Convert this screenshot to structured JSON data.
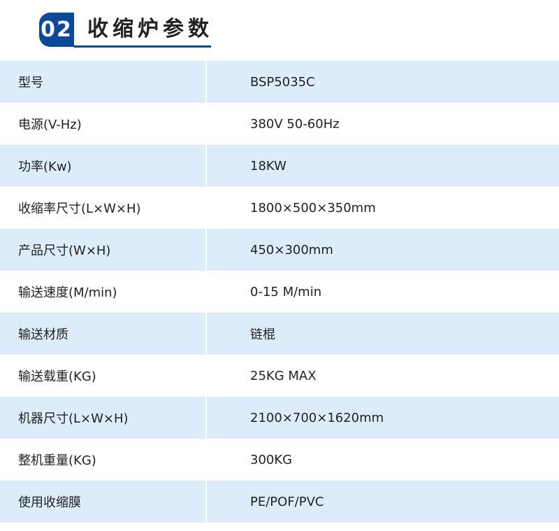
{
  "header": {
    "number": "02",
    "title": "收缩炉参数"
  },
  "rows": [
    {
      "label": "型号",
      "value": "BSP5035C"
    },
    {
      "label": "电源(V-Hz)",
      "value": "380V  50-60Hz"
    },
    {
      "label": "功率(Kw)",
      "value": "18KW"
    },
    {
      "label": "收缩率尺寸(L×W×H)",
      "value": "1800×500×350mm"
    },
    {
      "label": "产品尺寸(W×H)",
      "value": "450×300mm"
    },
    {
      "label": "输送速度(M/min)",
      "value": "0-15 M/min"
    },
    {
      "label": "输送材质",
      "value": "链棍"
    },
    {
      "label": "输送载重(KG)",
      "value": "25KG MAX"
    },
    {
      "label": "机器尺寸(L×W×H)",
      "value": "2100×700×1620mm"
    },
    {
      "label": "整机重量(KG)",
      "value": "300KG"
    },
    {
      "label": "使用收缩膜",
      "value": "PE/POF/PVC"
    }
  ],
  "colors": {
    "accent": "#0b4a98",
    "row_alt": "#ddecfb"
  }
}
